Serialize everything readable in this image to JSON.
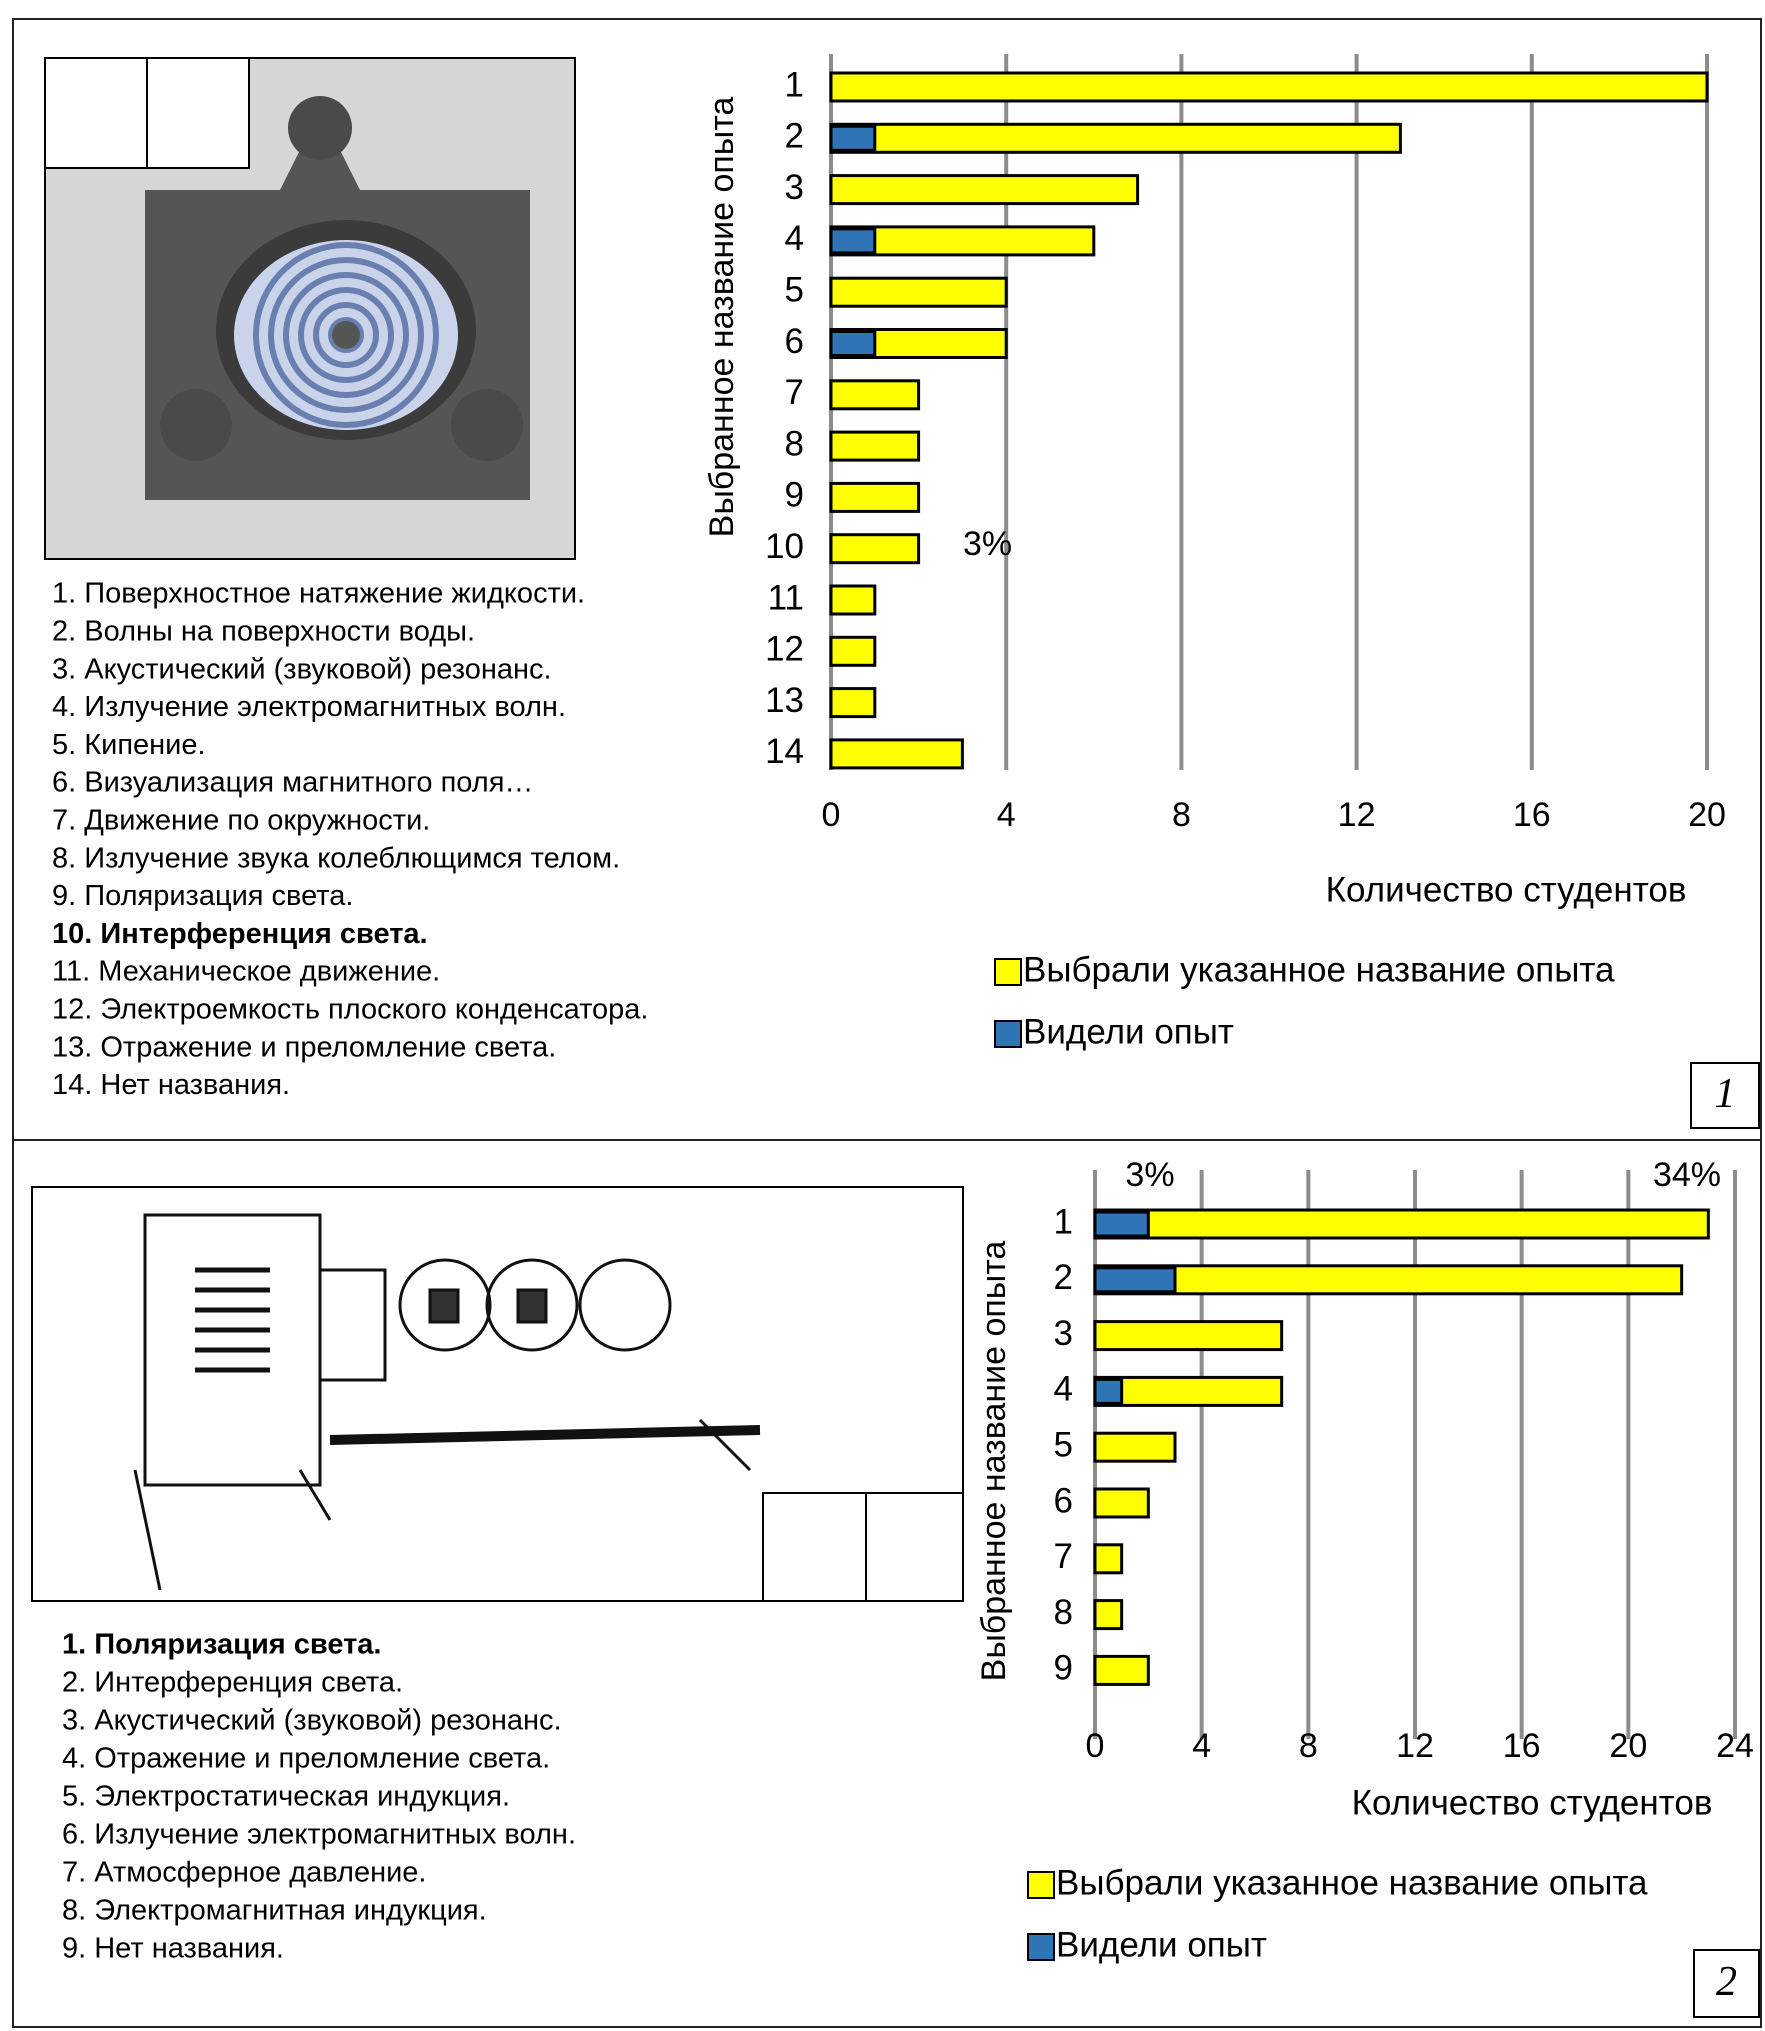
{
  "chart_data": [
    {
      "type": "bar",
      "orientation": "horizontal",
      "y_label": "Выбранное название опыта",
      "x_label": "Количество студентов",
      "categories": [
        "1",
        "2",
        "3",
        "4",
        "5",
        "6",
        "7",
        "8",
        "9",
        "10",
        "11",
        "12",
        "13",
        "14"
      ],
      "series": [
        {
          "name": "Выбрали указанное название опыта",
          "color": "#ffff00",
          "values": [
            20,
            13,
            7,
            6,
            4,
            4,
            2,
            2,
            2,
            2,
            1,
            1,
            1,
            3
          ]
        },
        {
          "name": "Видели опыт",
          "color": "#2f74b5",
          "values": [
            0,
            1,
            0,
            1,
            0,
            1,
            0,
            0,
            0,
            0,
            0,
            0,
            0,
            0
          ]
        }
      ],
      "xlim": [
        0,
        20
      ],
      "xticks": [
        0,
        4,
        8,
        12,
        16,
        20
      ],
      "grid": true,
      "annotations": [
        "3%"
      ]
    },
    {
      "type": "bar",
      "orientation": "horizontal",
      "y_label": "Выбранное название опыта",
      "x_label": "Количество студентов",
      "categories": [
        "1",
        "2",
        "3",
        "4",
        "5",
        "6",
        "7",
        "8",
        "9"
      ],
      "series": [
        {
          "name": "Выбрали указанное название опыта",
          "color": "#ffff00",
          "values": [
            23,
            22,
            7,
            7,
            3,
            2,
            1,
            1,
            2
          ]
        },
        {
          "name": "Видели опыт",
          "color": "#2f74b5",
          "values": [
            2,
            3,
            0,
            1,
            0,
            0,
            0,
            0,
            0
          ]
        }
      ],
      "xlim": [
        0,
        24
      ],
      "xticks": [
        0,
        4,
        8,
        12,
        16,
        20,
        24
      ],
      "grid": true,
      "annotations": [
        "3%",
        "34%"
      ]
    }
  ],
  "panels": [
    {
      "label": "1",
      "highlight": 9,
      "items": [
        "1. Поверхностное натяжение жидкости.",
        "2. Волны на поверхности воды.",
        "3. Акустический (звуковой) резонанс.",
        "4. Излучение электромагнитных волн.",
        "5. Кипение.",
        "6. Визуализация магнитного поля…",
        "7. Движение по окружности.",
        "8. Излучение звука колеблющимся телом.",
        "9. Поляризация света.",
        "10. Интерференция света.",
        "11. Механическое движение.",
        "12. Электроемкость плоского конденсатора.",
        "13. Отражение и преломление света.",
        "14. Нет названия."
      ]
    },
    {
      "label": "2",
      "highlight": 0,
      "items": [
        "1. Поляризация света.",
        "2. Интерференция света.",
        "3. Акустический (звуковой) резонанс.",
        "4. Отражение и преломление света.",
        "5. Электростатическая индукция.",
        "6. Излучение электромагнитных волн.",
        "7. Атмосферное давление.",
        "8. Электромагнитная индукция.",
        "9. Нет названия."
      ]
    }
  ]
}
